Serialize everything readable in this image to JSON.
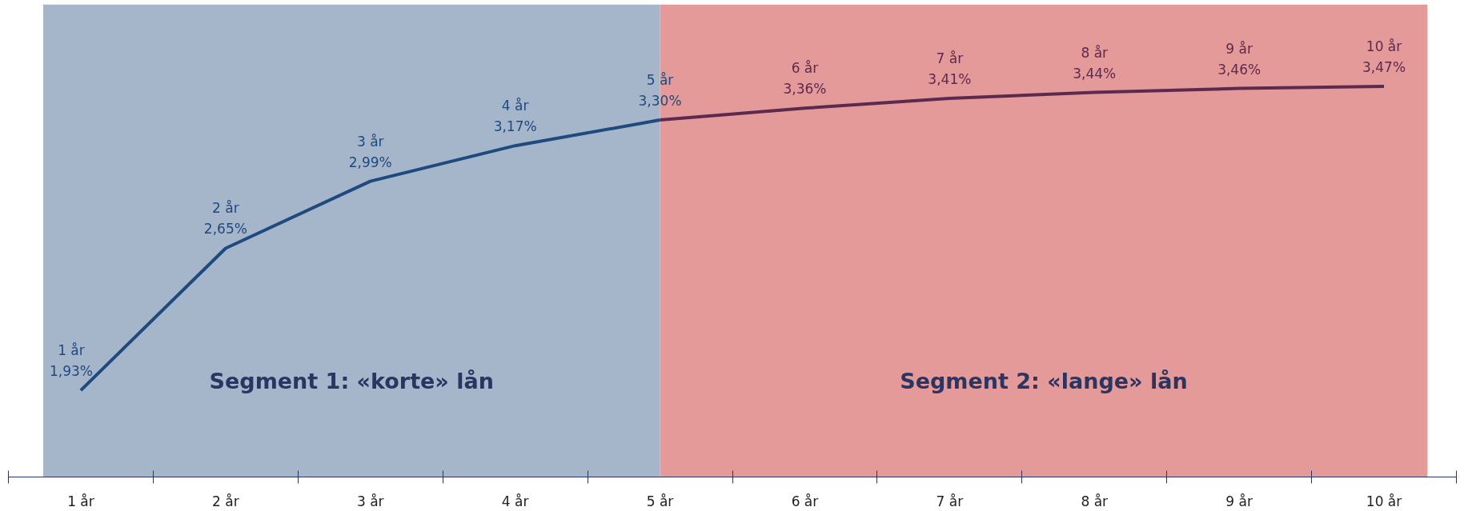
{
  "chart_data": {
    "type": "line",
    "categories": [
      "1 år",
      "2 år",
      "3 år",
      "4 år",
      "5 år",
      "6 år",
      "7 år",
      "8 år",
      "9 år",
      "10 år"
    ],
    "series": [
      {
        "color": "#1f4a7e",
        "values": [
          1.93,
          2.65,
          2.99,
          3.17,
          3.3,
          null,
          null,
          null,
          null,
          null
        ],
        "value_labels": [
          "1,93%",
          "2,65%",
          "2,99%",
          "3,17%",
          "3,30%",
          null,
          null,
          null,
          null,
          null
        ]
      },
      {
        "color": "#5c2a4e",
        "values": [
          null,
          null,
          null,
          null,
          3.3,
          3.36,
          3.41,
          3.44,
          3.46,
          3.47
        ],
        "value_labels": [
          null,
          null,
          null,
          null,
          null,
          "3,36%",
          "3,41%",
          "3,44%",
          "3,46%",
          "3,47%"
        ]
      }
    ],
    "bands": [
      {
        "axis": "x",
        "from": "1 år",
        "to": "5 år",
        "label": "Segment 1: «korte» lån",
        "color": "#a5b5ca"
      },
      {
        "axis": "x",
        "from": "5 år",
        "to": "10 år",
        "label": "Segment 2: «lange» lån",
        "color": "#e49a98"
      }
    ],
    "grid": false,
    "marker": "none",
    "line_style": "solid"
  }
}
